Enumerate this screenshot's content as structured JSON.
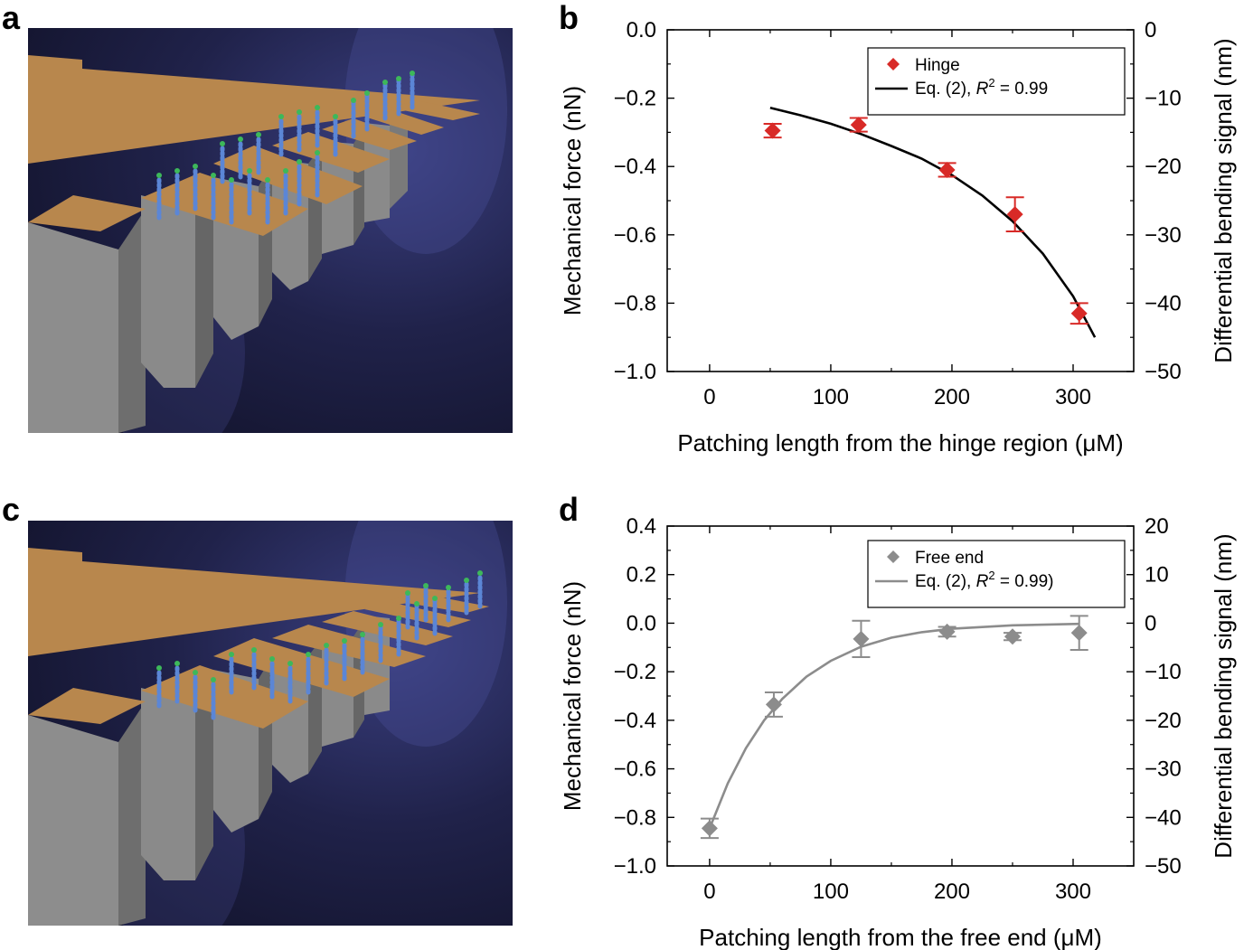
{
  "panels": [
    {
      "letter": "a"
    },
    {
      "letter": "b"
    },
    {
      "letter": "c"
    },
    {
      "letter": "d"
    }
  ],
  "colors": {
    "hinge": "#d82a27",
    "free_end": "#8c8c8c",
    "fit_b": "#000000",
    "fit_d": "#8c8c8c",
    "scene_bg": "#1b1d3f",
    "gold": "#b8874d",
    "gray_support": "#8a8a8a",
    "dna_blue": "#5b86d6",
    "dna_green": "#3db85a"
  },
  "chart_data": [
    {
      "id": "b",
      "type": "scatter",
      "xlabel": "Patching length from the hinge region (μM)",
      "ylabel": "Mechanical force (nN)",
      "y2label": "Differential bending signal (nm)",
      "xlim": [
        -35,
        350
      ],
      "ylim": [
        -1.0,
        0.0
      ],
      "y2lim": [
        -50,
        0
      ],
      "xticks": [
        "0",
        "100",
        "200",
        "300"
      ],
      "xtick_values": [
        0,
        100,
        200,
        300
      ],
      "yticks": [
        "0.0",
        "−0.2",
        "−0.4",
        "−0.6",
        "−0.8",
        "−1.0"
      ],
      "ytick_values": [
        0.0,
        -0.2,
        -0.4,
        -0.6,
        -0.8,
        -1.0
      ],
      "y2ticks": [
        "0",
        "−10",
        "−20",
        "−30",
        "−40",
        "−50"
      ],
      "y2tick_values": [
        0,
        -10,
        -20,
        -30,
        -40,
        -50
      ],
      "series": [
        {
          "name": "Hinge",
          "x": [
            52,
            123,
            196,
            252,
            305
          ],
          "y": [
            -0.295,
            -0.278,
            -0.41,
            -0.54,
            -0.83
          ],
          "err": [
            0.02,
            0.02,
            0.02,
            0.05,
            0.03
          ]
        }
      ],
      "fit": {
        "label_prefix": "Eq. (2), ",
        "label_r": "R",
        "label_sup": "2",
        "label_suffix": " = 0.99",
        "x": [
          50,
          75,
          100,
          125,
          150,
          175,
          200,
          225,
          250,
          275,
          300,
          318
        ],
        "y": [
          -0.228,
          -0.25,
          -0.275,
          -0.305,
          -0.34,
          -0.377,
          -0.425,
          -0.485,
          -0.56,
          -0.655,
          -0.78,
          -0.9
        ]
      }
    },
    {
      "id": "d",
      "type": "scatter",
      "xlabel": "Patching length from the free end (μM)",
      "ylabel": "Mechanical force (nN)",
      "y2label": "Differential bending signal (nm)",
      "xlim": [
        -35,
        350
      ],
      "ylim": [
        -1.0,
        0.4
      ],
      "y2lim": [
        -50,
        20
      ],
      "xticks": [
        "0",
        "100",
        "200",
        "300"
      ],
      "xtick_values": [
        0,
        100,
        200,
        300
      ],
      "yticks": [
        "0.4",
        "0.2",
        "0.0",
        "−0.2",
        "−0.4",
        "−0.6",
        "−0.8",
        "−1.0"
      ],
      "ytick_values": [
        0.4,
        0.2,
        0.0,
        -0.2,
        -0.4,
        -0.6,
        -0.8,
        -1.0
      ],
      "y2ticks": [
        "20",
        "10",
        "0",
        "−10",
        "−20",
        "−30",
        "−40",
        "−50"
      ],
      "y2tick_values": [
        20,
        10,
        0,
        -10,
        -20,
        -30,
        -40,
        -50
      ],
      "series": [
        {
          "name": "Free end",
          "x": [
            0,
            53,
            125,
            196,
            250,
            305
          ],
          "y": [
            -0.845,
            -0.335,
            -0.065,
            -0.035,
            -0.055,
            -0.04
          ],
          "err": [
            0.04,
            0.05,
            0.075,
            0.02,
            0.015,
            0.07
          ]
        }
      ],
      "fit": {
        "label_prefix": "Eq. (2), ",
        "label_r": "R",
        "label_sup": "2",
        "label_suffix": " = 0.99)",
        "x": [
          0,
          15,
          30,
          45,
          60,
          80,
          100,
          125,
          150,
          175,
          200,
          250,
          305
        ],
        "y": [
          -0.845,
          -0.66,
          -0.515,
          -0.4,
          -0.312,
          -0.22,
          -0.155,
          -0.097,
          -0.06,
          -0.037,
          -0.023,
          -0.009,
          -0.003
        ]
      }
    }
  ]
}
